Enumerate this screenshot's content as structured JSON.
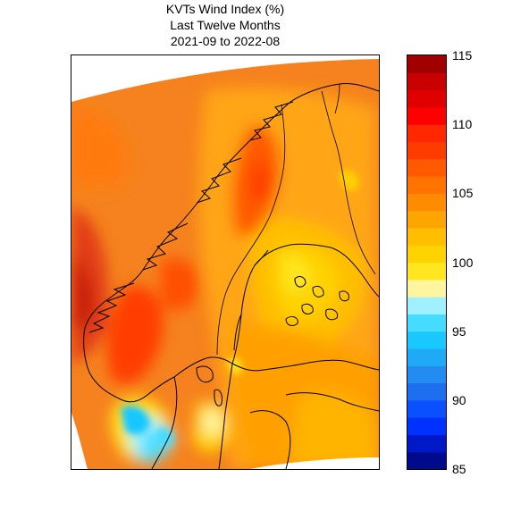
{
  "title": {
    "line1": "KVTs Wind Index (%)",
    "line2": "Last Twelve Months",
    "line3": "2021-09 to 2022-08"
  },
  "colorbar": {
    "min": 85,
    "max": 115,
    "tick_labels": [
      "115",
      "110",
      "105",
      "100",
      "95",
      "90",
      "85"
    ],
    "tick_values": [
      115,
      110,
      105,
      100,
      95,
      90,
      85
    ],
    "colors_bottom_to_top": [
      "#000a8c",
      "#0019c8",
      "#0032ff",
      "#0a50ff",
      "#1e6ef0",
      "#238cf0",
      "#1eaaf5",
      "#19c8ff",
      "#46dcff",
      "#a0f0ff",
      "#fff5a0",
      "#ffe61e",
      "#ffd200",
      "#ffbe00",
      "#ffa500",
      "#ff8c00",
      "#ff7300",
      "#ff5a00",
      "#ff3c00",
      "#ff2800",
      "#ff0000",
      "#e10000",
      "#c80000",
      "#a00000"
    ]
  },
  "map": {
    "region": "Scandinavia",
    "sea_color": "#f5821e",
    "outer_blank_color": "#ffffff"
  }
}
